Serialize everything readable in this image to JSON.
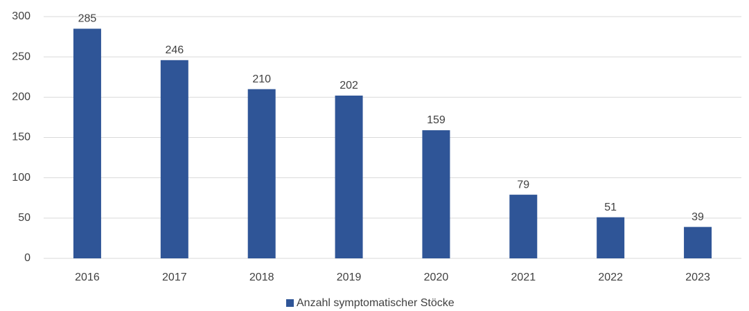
{
  "chart_data": {
    "type": "bar",
    "categories": [
      "2016",
      "2017",
      "2018",
      "2019",
      "2020",
      "2021",
      "2022",
      "2023"
    ],
    "series": [
      {
        "name": "Anzahl symptomatischer Stöcke",
        "color": "#2f5597",
        "values": [
          285,
          246,
          210,
          202,
          159,
          79,
          51,
          39
        ]
      }
    ],
    "ylim": [
      0,
      300
    ],
    "yticks": [
      0,
      50,
      100,
      150,
      200,
      250,
      300
    ],
    "grid": true,
    "legend": "bottom"
  }
}
